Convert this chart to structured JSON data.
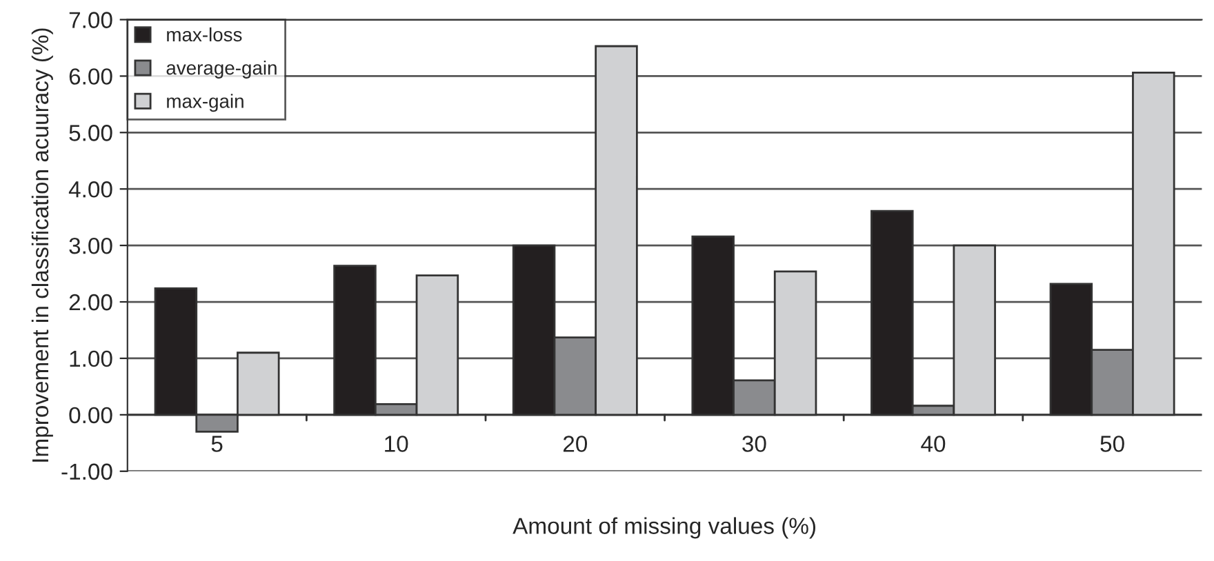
{
  "chart_data": {
    "type": "bar",
    "xlabel": "Amount of missing values (%)",
    "ylabel": "Improvement in classification acuuracy (%)",
    "categories": [
      "5",
      "10",
      "20",
      "30",
      "40",
      "50"
    ],
    "series": [
      {
        "name": "max-loss",
        "color": "#231f20",
        "values": [
          2.24,
          2.64,
          3.0,
          3.16,
          3.61,
          2.32
        ]
      },
      {
        "name": "average-gain",
        "color": "#8a8b8e",
        "values": [
          -0.3,
          0.19,
          1.37,
          0.61,
          0.16,
          1.15
        ]
      },
      {
        "name": "max-gain",
        "color": "#d0d1d3",
        "values": [
          1.1,
          2.47,
          6.53,
          2.54,
          3.0,
          6.06
        ]
      }
    ],
    "ylim": [
      -1,
      7
    ],
    "yticks": [
      {
        "value": -1,
        "label": "-1.00"
      },
      {
        "value": 0,
        "label": "0.00"
      },
      {
        "value": 1,
        "label": "1.00"
      },
      {
        "value": 2,
        "label": "2.00"
      },
      {
        "value": 3,
        "label": "3.00"
      },
      {
        "value": 4,
        "label": "4.00"
      },
      {
        "value": 5,
        "label": "5.00"
      },
      {
        "value": 6,
        "label": "6.00"
      },
      {
        "value": 7,
        "label": "7.00"
      }
    ],
    "grid": "y",
    "legend": "top left"
  }
}
